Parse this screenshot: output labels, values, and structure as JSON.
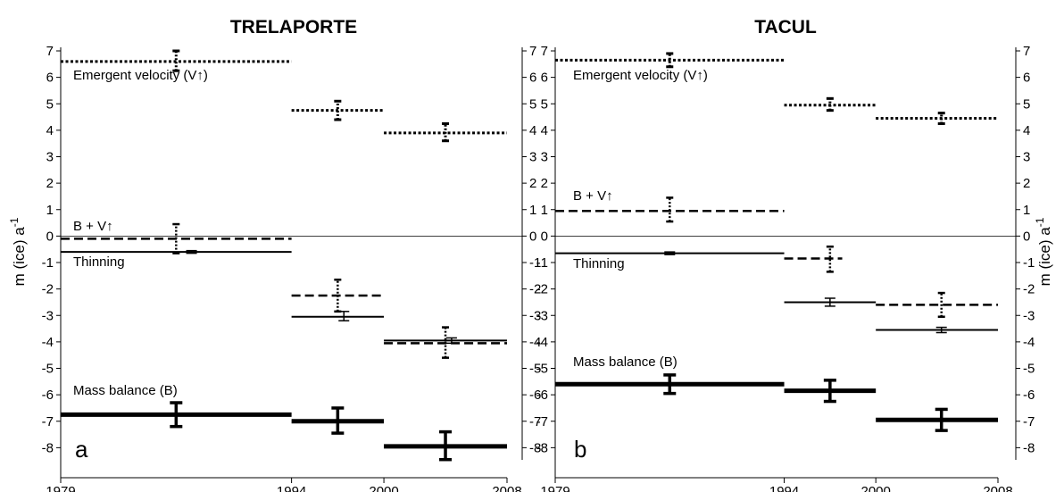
{
  "y_axis_label": "m (ice) a",
  "y_axis_label_sup": "-1",
  "chart_data": [
    {
      "type": "interval",
      "panel": "a",
      "title": "TRELAPORTE",
      "xlim": [
        1979,
        2008
      ],
      "x_ticks": [
        1979,
        1994,
        2000,
        2008
      ],
      "ylim": [
        -9,
        7
      ],
      "y_ticks": [
        -8,
        -7,
        -6,
        -5,
        -4,
        -3,
        -2,
        -1,
        0,
        1,
        2,
        3,
        4,
        5,
        6,
        7
      ],
      "annotations": [
        {
          "text": "Emergent velocity (V↑)",
          "series": "emergent_velocity"
        },
        {
          "text": "B + V↑",
          "series": "b_plus_v"
        },
        {
          "text": "Thinning",
          "series": "thinning"
        },
        {
          "text": "Mass balance (B)",
          "series": "mass_balance"
        }
      ],
      "series": [
        {
          "key": "emergent_velocity",
          "style": "dotted",
          "segments": [
            {
              "x0": 1979,
              "x1": 1994,
              "value": 6.6,
              "err_low": 6.25,
              "err_high": 7.0,
              "err_x": 1986.5
            },
            {
              "x0": 1994,
              "x1": 2000,
              "value": 4.75,
              "err_low": 4.4,
              "err_high": 5.1,
              "err_x": 1997
            },
            {
              "x0": 2000,
              "x1": 2008,
              "value": 3.9,
              "err_low": 3.6,
              "err_high": 4.25,
              "err_x": 2004
            }
          ]
        },
        {
          "key": "b_plus_v",
          "style": "dashed",
          "segments": [
            {
              "x0": 1979,
              "x1": 1994,
              "value": -0.1,
              "err_low": -0.65,
              "err_high": 0.45,
              "err_x": 1986.5
            },
            {
              "x0": 1994,
              "x1": 2000,
              "value": -2.25,
              "err_low": -2.85,
              "err_high": -1.65,
              "err_x": 1997
            },
            {
              "x0": 2000,
              "x1": 2008,
              "value": -4.05,
              "err_low": -4.6,
              "err_high": -3.45,
              "err_x": 2004
            }
          ]
        },
        {
          "key": "thinning",
          "style": "thin",
          "segments": [
            {
              "x0": 1979,
              "x1": 1994,
              "value": -0.6,
              "err_low": -0.65,
              "err_high": -0.55,
              "err_x": 1987.5
            },
            {
              "x0": 1994,
              "x1": 2000,
              "value": -3.05,
              "err_low": -3.2,
              "err_high": -2.85,
              "err_x": 1997.4
            },
            {
              "x0": 2000,
              "x1": 2008,
              "value": -3.95,
              "err_low": -4.05,
              "err_high": -3.85,
              "err_x": 2004.4
            }
          ]
        },
        {
          "key": "mass_balance",
          "style": "thick",
          "segments": [
            {
              "x0": 1979,
              "x1": 1994,
              "value": -6.75,
              "err_low": -7.2,
              "err_high": -6.3,
              "err_x": 1986.5
            },
            {
              "x0": 1994,
              "x1": 2000,
              "value": -7.0,
              "err_low": -7.45,
              "err_high": -6.5,
              "err_x": 1997
            },
            {
              "x0": 2000,
              "x1": 2008,
              "value": -7.95,
              "err_low": -8.45,
              "err_high": -7.4,
              "err_x": 2004
            }
          ]
        }
      ]
    },
    {
      "type": "interval",
      "panel": "b",
      "title": "TACUL",
      "xlim": [
        1979,
        2008
      ],
      "x_ticks": [
        1979,
        1994,
        2000,
        2008
      ],
      "ylim": [
        -9,
        7
      ],
      "y_ticks": [
        -8,
        -7,
        -6,
        -5,
        -4,
        -3,
        -2,
        -1,
        0,
        1,
        2,
        3,
        4,
        5,
        6,
        7
      ],
      "annotations": [
        {
          "text": "Emergent velocity (V↑)",
          "series": "emergent_velocity"
        },
        {
          "text": "B + V↑",
          "series": "b_plus_v"
        },
        {
          "text": "Thinning",
          "series": "thinning"
        },
        {
          "text": "Mass balance (B)",
          "series": "mass_balance"
        }
      ],
      "series": [
        {
          "key": "emergent_velocity",
          "style": "dotted",
          "segments": [
            {
              "x0": 1979,
              "x1": 1994,
              "value": 6.65,
              "err_low": 6.4,
              "err_high": 6.9,
              "err_x": 1986.5
            },
            {
              "x0": 1994,
              "x1": 2000,
              "value": 4.95,
              "err_low": 4.75,
              "err_high": 5.2,
              "err_x": 1997
            },
            {
              "x0": 2000,
              "x1": 2008,
              "value": 4.45,
              "err_low": 4.25,
              "err_high": 4.65,
              "err_x": 2004.3
            }
          ]
        },
        {
          "key": "b_plus_v",
          "style": "dashed",
          "segments": [
            {
              "x0": 1979,
              "x1": 1994,
              "value": 0.95,
              "err_low": 0.55,
              "err_high": 1.45,
              "err_x": 1986.5
            },
            {
              "x0": 1994,
              "x1": 1997.8,
              "value": -0.85,
              "err_low": -1.35,
              "err_high": -0.4,
              "err_x": 1997
            },
            {
              "x0": 2000,
              "x1": 2008,
              "value": -2.6,
              "err_low": -3.05,
              "err_high": -2.15,
              "err_x": 2004.3
            }
          ]
        },
        {
          "key": "thinning",
          "style": "thin",
          "segments": [
            {
              "x0": 1979,
              "x1": 1994,
              "value": -0.65,
              "err_low": -0.7,
              "err_high": -0.6,
              "err_x": 1986.5
            },
            {
              "x0": 1994,
              "x1": 2000,
              "value": -2.5,
              "err_low": -2.65,
              "err_high": -2.35,
              "err_x": 1997
            },
            {
              "x0": 2000,
              "x1": 2008,
              "value": -3.55,
              "err_low": -3.65,
              "err_high": -3.45,
              "err_x": 2004.3
            }
          ]
        },
        {
          "key": "mass_balance",
          "style": "thick",
          "segments": [
            {
              "x0": 1979,
              "x1": 1994,
              "value": -5.6,
              "err_low": -5.95,
              "err_high": -5.25,
              "err_x": 1986.5
            },
            {
              "x0": 1994,
              "x1": 2000,
              "value": -5.85,
              "err_low": -6.25,
              "err_high": -5.45,
              "err_x": 1997
            },
            {
              "x0": 2000,
              "x1": 2008,
              "value": -6.95,
              "err_low": -7.35,
              "err_high": -6.55,
              "err_x": 2004.3
            }
          ]
        }
      ]
    }
  ]
}
